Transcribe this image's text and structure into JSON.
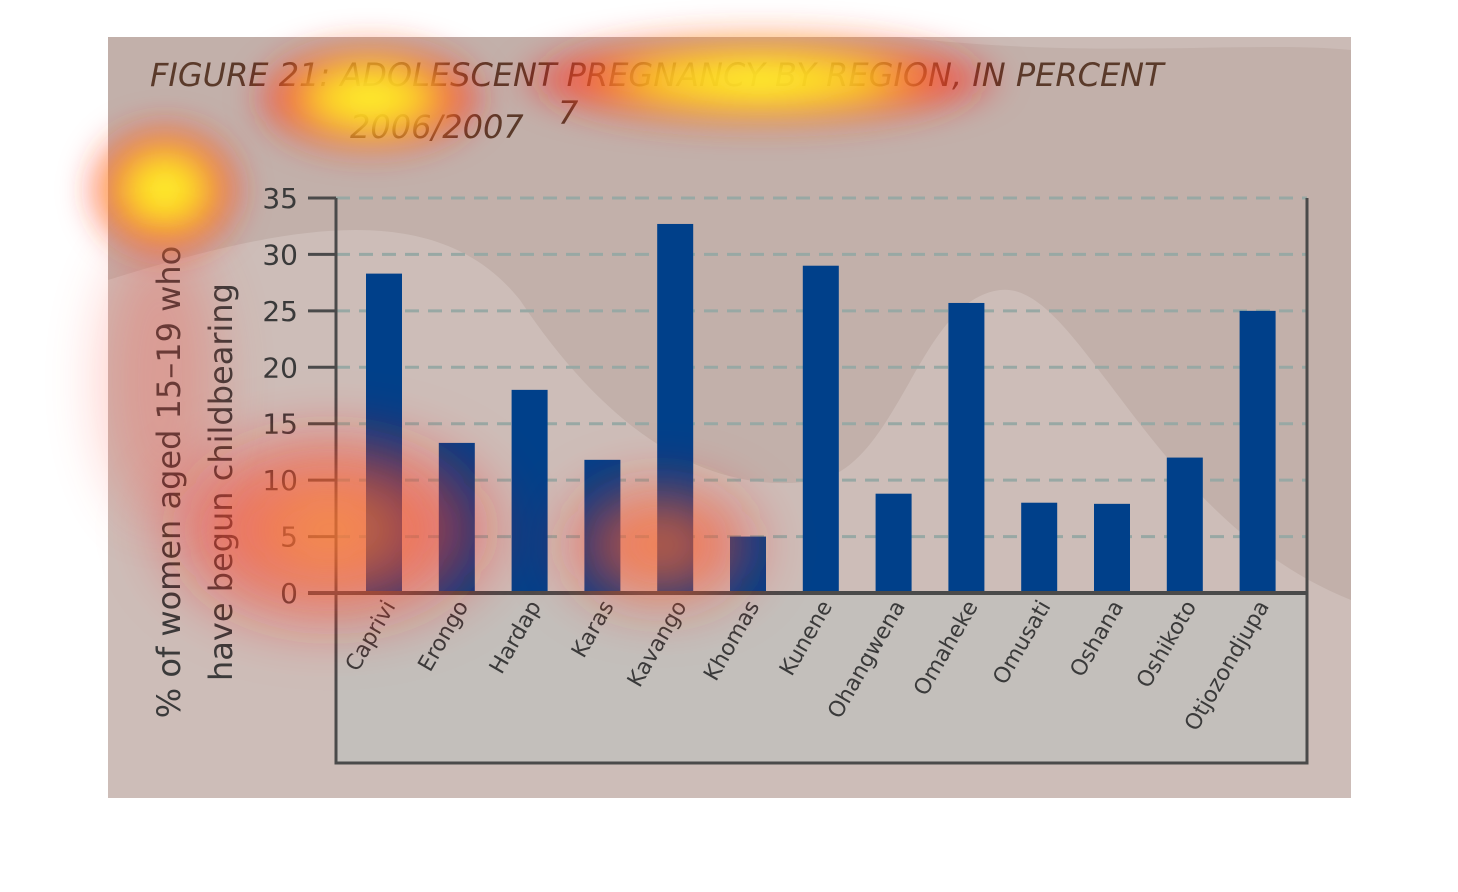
{
  "chart_data": {
    "type": "bar",
    "title": "FIGURE 21: ADOLESCENT PREGNANCY BY REGION, IN PERCENT",
    "subtitle": "2006/2007",
    "title_footnote": "7",
    "ylabel_line1": "% of women aged 15–19 who",
    "ylabel_line2": "have begun childbearing",
    "xlabel": "",
    "ylim": [
      0,
      35
    ],
    "yticks": [
      0,
      5,
      10,
      15,
      20,
      25,
      30,
      35
    ],
    "grid": true,
    "categories": [
      "Caprivi",
      "Erongo",
      "Hardap",
      "Karas",
      "Kavango",
      "Khomas",
      "Kunene",
      "Ohangwena",
      "Omaheke",
      "Omusati",
      "Oshana",
      "Oshikoto",
      "Otjozondjupa"
    ],
    "values": [
      28.3,
      13.3,
      18.0,
      11.8,
      32.7,
      5.0,
      29.0,
      8.8,
      25.7,
      8.0,
      7.9,
      12.0,
      25.0
    ],
    "bar_color": "#00408a",
    "background_color": "#c2b0aa",
    "axis_box_color": "#c3bfbb",
    "heatmap_overlay": true
  }
}
